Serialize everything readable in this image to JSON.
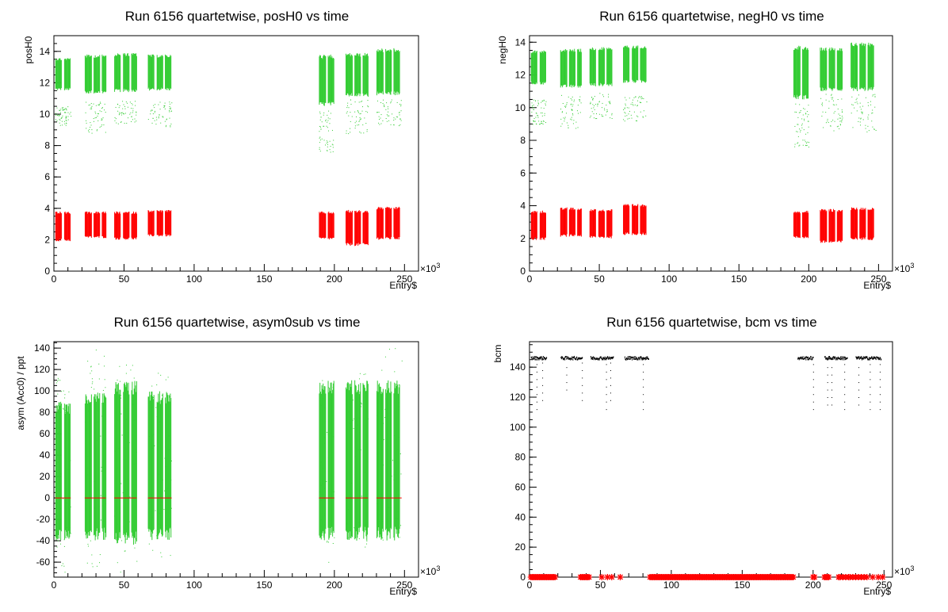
{
  "colors": {
    "green": "#33cc33",
    "red": "#ff0000",
    "black": "#000000"
  },
  "chart_data": [
    {
      "type": "scatter",
      "title": "Run 6156 quartetwise, posH0 vs time",
      "xlabel": "Entry$",
      "ylabel": "posH0",
      "x_exponent_label": "×10",
      "x_exponent_power": "3",
      "xlim": [
        0,
        260
      ],
      "ylim": [
        0,
        15
      ],
      "xticks": [
        "0",
        "50",
        "100",
        "150",
        "200",
        "250"
      ],
      "yticks": [
        "0",
        "2",
        "4",
        "6",
        "8",
        "10",
        "12",
        "14"
      ],
      "series": [
        {
          "color": "green",
          "kind": "bands",
          "segments": [
            [
              1,
              12,
              11.5,
              13.6
            ],
            [
              22,
              37,
              11.3,
              13.8
            ],
            [
              43,
              59,
              11.4,
              13.9
            ],
            [
              67,
              84,
              11.5,
              13.8
            ],
            [
              189,
              200,
              10.5,
              13.8
            ],
            [
              208,
              224,
              11.1,
              13.9
            ],
            [
              230,
              248,
              11.2,
              14.2
            ]
          ],
          "sparse": [
            [
              1,
              12,
              9.3,
              10.5
            ],
            [
              22,
              37,
              8.8,
              10.8
            ],
            [
              43,
              59,
              9.4,
              10.9
            ],
            [
              67,
              84,
              9.2,
              10.8
            ],
            [
              189,
              200,
              7.6,
              10.4
            ],
            [
              208,
              224,
              8.7,
              11
            ],
            [
              230,
              248,
              9.2,
              11
            ]
          ]
        },
        {
          "color": "red",
          "kind": "bands",
          "segments": [
            [
              1,
              12,
              1.9,
              3.8
            ],
            [
              22,
              37,
              2.1,
              3.8
            ],
            [
              43,
              59,
              2.0,
              3.8
            ],
            [
              67,
              84,
              2.2,
              3.9
            ],
            [
              189,
              200,
              2.0,
              3.8
            ],
            [
              208,
              224,
              1.6,
              3.9
            ],
            [
              230,
              248,
              2.0,
              4.1
            ]
          ],
          "sparse": []
        }
      ]
    },
    {
      "type": "scatter",
      "title": "Run 6156 quartetwise, negH0 vs time",
      "xlabel": "Entry$",
      "ylabel": "negH0",
      "x_exponent_label": "×10",
      "x_exponent_power": "3",
      "xlim": [
        0,
        260
      ],
      "ylim": [
        0,
        14.4
      ],
      "xticks": [
        "0",
        "50",
        "100",
        "150",
        "200",
        "250"
      ],
      "yticks": [
        "0",
        "2",
        "4",
        "6",
        "8",
        "10",
        "12",
        "14"
      ],
      "series": [
        {
          "color": "green",
          "kind": "bands",
          "segments": [
            [
              1,
              12,
              11.4,
              13.5
            ],
            [
              22,
              37,
              11.2,
              13.6
            ],
            [
              43,
              59,
              11.3,
              13.7
            ],
            [
              67,
              84,
              11.5,
              13.8
            ],
            [
              189,
              200,
              10.5,
              13.8
            ],
            [
              208,
              224,
              11.0,
              13.7
            ],
            [
              230,
              248,
              11.0,
              14.0
            ]
          ],
          "sparse": [
            [
              1,
              12,
              9.0,
              10.5
            ],
            [
              22,
              37,
              8.7,
              10.8
            ],
            [
              43,
              59,
              9.2,
              10.9
            ],
            [
              67,
              84,
              9.2,
              10.7
            ],
            [
              189,
              200,
              7.6,
              10.3
            ],
            [
              208,
              224,
              8.6,
              10.9
            ],
            [
              230,
              248,
              8.5,
              10.9
            ]
          ]
        },
        {
          "color": "red",
          "kind": "bands",
          "segments": [
            [
              1,
              12,
              1.9,
              3.7
            ],
            [
              22,
              37,
              2.1,
              3.9
            ],
            [
              43,
              59,
              2.0,
              3.8
            ],
            [
              67,
              84,
              2.2,
              4.1
            ],
            [
              189,
              200,
              2.0,
              3.7
            ],
            [
              208,
              224,
              1.7,
              3.8
            ],
            [
              230,
              248,
              1.9,
              3.9
            ]
          ],
          "sparse": []
        }
      ]
    },
    {
      "type": "scatter",
      "title": "Run 6156 quartetwise, asym0sub vs time",
      "xlabel": "Entry$",
      "ylabel": "asym (Acc0) / ppt",
      "x_exponent_label": "×10",
      "x_exponent_power": "3",
      "xlim": [
        0,
        260
      ],
      "ylim": [
        -74,
        146
      ],
      "xticks": [
        "0",
        "50",
        "100",
        "150",
        "200",
        "250"
      ],
      "yticks": [
        "-60",
        "-40",
        "-20",
        "0",
        "20",
        "40",
        "60",
        "80",
        "100",
        "120",
        "140"
      ],
      "series": [
        {
          "color": "green",
          "kind": "bands",
          "segments": [
            [
              1,
              12,
              -40,
              90
            ],
            [
              22,
              37,
              -40,
              100
            ],
            [
              43,
              59,
              -45,
              110
            ],
            [
              67,
              84,
              -40,
              100
            ],
            [
              189,
              200,
              -40,
              110
            ],
            [
              208,
              224,
              -40,
              110
            ],
            [
              230,
              248,
              -40,
              110
            ]
          ],
          "sparse": [
            [
              1,
              12,
              -70,
              120
            ],
            [
              22,
              37,
              -70,
              140
            ],
            [
              43,
              59,
              -70,
              125
            ],
            [
              67,
              84,
              -60,
              120
            ],
            [
              189,
              200,
              -60,
              120
            ],
            [
              208,
              224,
              -50,
              125
            ],
            [
              230,
              248,
              -45,
              140
            ]
          ]
        },
        {
          "color": "red",
          "kind": "hline",
          "segments": [
            [
              1,
              12,
              0,
              0
            ],
            [
              22,
              37,
              0,
              0
            ],
            [
              43,
              59,
              0,
              0
            ],
            [
              67,
              84,
              0,
              0
            ],
            [
              189,
              200,
              0,
              0
            ],
            [
              208,
              224,
              0,
              0
            ],
            [
              230,
              248,
              0,
              0
            ]
          ],
          "sparse": []
        }
      ]
    },
    {
      "type": "scatter",
      "title": "Run 6156 quartetwise, bcm vs time",
      "xlabel": "",
      "ylabel": "bcm",
      "x_exponent_label": "×10",
      "x_exponent_power": "3",
      "xlim": [
        0,
        256
      ],
      "ylim": [
        0,
        157
      ],
      "xticks": [
        "0",
        "50",
        "100",
        "150",
        "200",
        "250"
      ],
      "yticks": [
        "0",
        "20",
        "40",
        "60",
        "80",
        "100",
        "120",
        "140"
      ],
      "series": [
        {
          "color": "black",
          "kind": "bcm",
          "segments": [
            [
              1,
              12,
              146,
              146
            ],
            [
              22,
              37,
              146,
              146
            ],
            [
              43,
              59,
              146,
              146
            ],
            [
              67,
              84,
              146,
              146
            ],
            [
              189,
              200,
              146,
              146
            ],
            [
              208,
              224,
              146,
              146
            ],
            [
              230,
              248,
              146,
              146
            ]
          ],
          "drops": [
            [
              5,
              112
            ],
            [
              9,
              118
            ],
            [
              26,
              125
            ],
            [
              37,
              118
            ],
            [
              54,
              112
            ],
            [
              57,
              118
            ],
            [
              80,
              112
            ],
            [
              200,
              112
            ],
            [
              210,
              115
            ],
            [
              213,
              115
            ],
            [
              222,
              112
            ],
            [
              232,
              115
            ],
            [
              240,
              112
            ],
            [
              247,
              112
            ]
          ]
        },
        {
          "color": "red",
          "kind": "markers",
          "points": [
            1,
            2,
            3,
            4,
            5,
            6,
            7,
            8,
            9,
            10,
            11,
            12,
            13,
            14,
            15,
            16,
            17,
            18,
            36,
            37,
            38,
            39,
            40,
            41,
            42,
            51,
            55,
            58,
            64,
            85,
            86,
            87,
            88,
            89,
            90,
            91,
            92,
            93,
            94,
            95,
            96,
            97,
            98,
            99,
            100,
            101,
            102,
            103,
            104,
            105,
            106,
            107,
            108,
            109,
            110,
            111,
            112,
            113,
            114,
            115,
            116,
            117,
            118,
            119,
            120,
            121,
            122,
            123,
            124,
            125,
            126,
            127,
            128,
            129,
            130,
            131,
            132,
            133,
            134,
            135,
            136,
            137,
            138,
            139,
            140,
            141,
            142,
            143,
            144,
            145,
            146,
            147,
            148,
            149,
            150,
            151,
            152,
            153,
            154,
            155,
            156,
            157,
            158,
            159,
            160,
            161,
            162,
            163,
            164,
            165,
            166,
            167,
            168,
            169,
            170,
            171,
            172,
            173,
            174,
            175,
            176,
            177,
            178,
            179,
            180,
            181,
            182,
            183,
            184,
            185,
            186,
            200,
            201,
            208,
            209,
            210,
            211,
            218,
            219,
            221,
            223,
            225,
            226,
            228,
            230,
            232,
            234,
            236,
            238,
            242,
            246,
            249
          ],
          "y": 0
        }
      ]
    }
  ]
}
